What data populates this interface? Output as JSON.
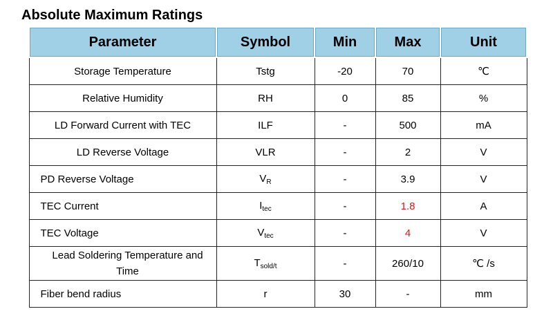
{
  "title": "Absolute Maximum Ratings",
  "headers": [
    "Parameter",
    "Symbol",
    "Min",
    "Max",
    "Unit"
  ],
  "rows": [
    {
      "parameter": "Storage Temperature",
      "symbol": "Tstg",
      "symbol_sub": "",
      "min": "-20",
      "max": "70",
      "unit": "℃"
    },
    {
      "parameter": "Relative Humidity",
      "symbol": "RH",
      "symbol_sub": "",
      "min": "0",
      "max": "85",
      "unit": "%"
    },
    {
      "parameter": "LD Forward Current with TEC",
      "symbol": "ILF",
      "symbol_sub": "",
      "min": "-",
      "max": "500",
      "unit": "mA"
    },
    {
      "parameter": "LD Reverse Voltage",
      "symbol": "VLR",
      "symbol_sub": "",
      "min": "-",
      "max": "2",
      "unit": "V"
    },
    {
      "parameter": "PD Reverse Voltage",
      "symbol": "V",
      "symbol_sub": "R",
      "min": "-",
      "max": "3.9",
      "unit": "V"
    },
    {
      "parameter": "TEC Current",
      "symbol": "I",
      "symbol_sub": "tec",
      "min": "-",
      "max": "1.8",
      "unit": "A"
    },
    {
      "parameter": "TEC Voltage",
      "symbol": "V",
      "symbol_sub": "tec",
      "min": "-",
      "max": "4",
      "unit": "V"
    },
    {
      "parameter": "Lead Soldering Temperature and Time",
      "symbol": "T",
      "symbol_sub": "sold/t",
      "min": "-",
      "max": "260/10",
      "unit": "℃ /s"
    },
    {
      "parameter": "Fiber bend radius",
      "symbol": "r",
      "symbol_sub": "",
      "min": "30",
      "max": "-",
      "unit": "mm"
    }
  ],
  "highlight_color": "#e0141c",
  "header_color": "#9fd0e6"
}
